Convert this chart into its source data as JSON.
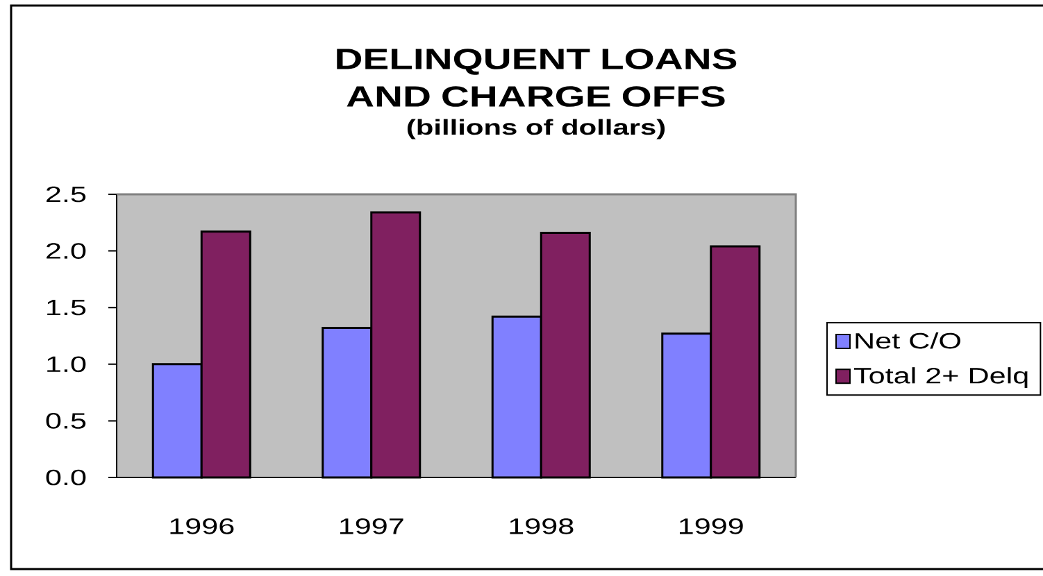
{
  "chart_data": {
    "type": "bar",
    "title": "DELINQUENT LOANS AND CHARGE OFFS",
    "subtitle": "(billions of dollars)",
    "categories": [
      "1996",
      "1997",
      "1998",
      "1999"
    ],
    "series": [
      {
        "name": "Net C/O",
        "color": "#8080ff",
        "values": [
          1.0,
          1.32,
          1.42,
          1.27
        ]
      },
      {
        "name": "Total 2+ Delq",
        "color": "#802060",
        "values": [
          2.17,
          2.34,
          2.16,
          2.04
        ]
      }
    ],
    "ylim": [
      0,
      2.5
    ],
    "yticks": [
      {
        "value": 0,
        "label": "0.0"
      },
      0.5,
      {
        "value": 1,
        "label": "1.0"
      },
      1.5,
      {
        "value": 2,
        "label": "2.0"
      },
      2.5
    ],
    "legend": "right"
  }
}
